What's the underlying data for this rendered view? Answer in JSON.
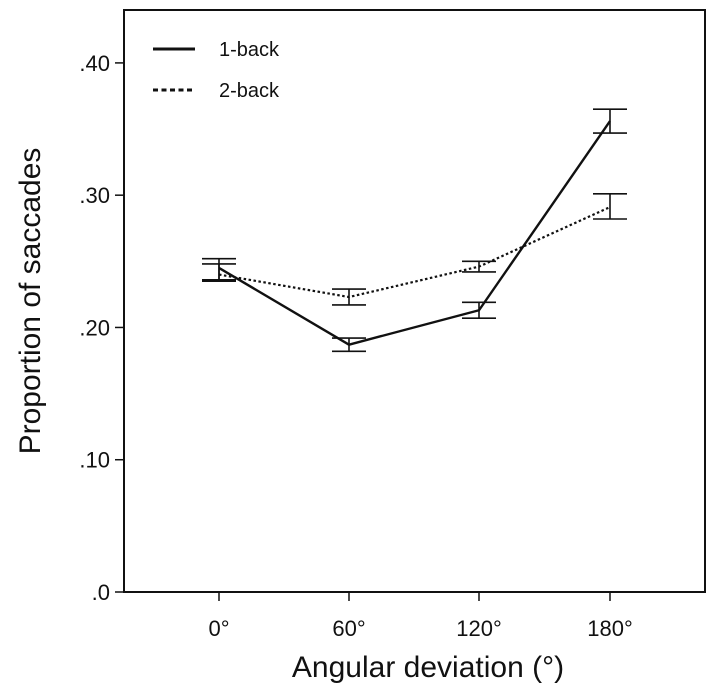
{
  "chart_data": {
    "type": "line",
    "xlabel": "Angular deviation (°)",
    "ylabel": "Proportion of saccades",
    "categories": [
      "0°",
      "60°",
      "120°",
      "180°"
    ],
    "y_ticks": [
      ".0",
      ".10",
      ".20",
      ".30",
      ".40"
    ],
    "y_tick_values": [
      0,
      0.1,
      0.2,
      0.3,
      0.4
    ],
    "ylim": [
      0,
      0.44
    ],
    "grid": false,
    "legend_position": "top-left",
    "series": [
      {
        "name": "1-back",
        "style": "solid",
        "values": [
          0.245,
          0.187,
          0.213,
          0.356
        ],
        "err_low": [
          0.235,
          0.182,
          0.207,
          0.347
        ],
        "err_high": [
          0.252,
          0.192,
          0.219,
          0.365
        ]
      },
      {
        "name": "2-back",
        "style": "dotted",
        "values": [
          0.24,
          0.223,
          0.246,
          0.291
        ],
        "err_low": [
          0.236,
          0.217,
          0.242,
          0.282
        ],
        "err_high": [
          0.248,
          0.229,
          0.25,
          0.301
        ]
      }
    ],
    "colors": {
      "line": "#111111",
      "background": "#ffffff"
    }
  }
}
